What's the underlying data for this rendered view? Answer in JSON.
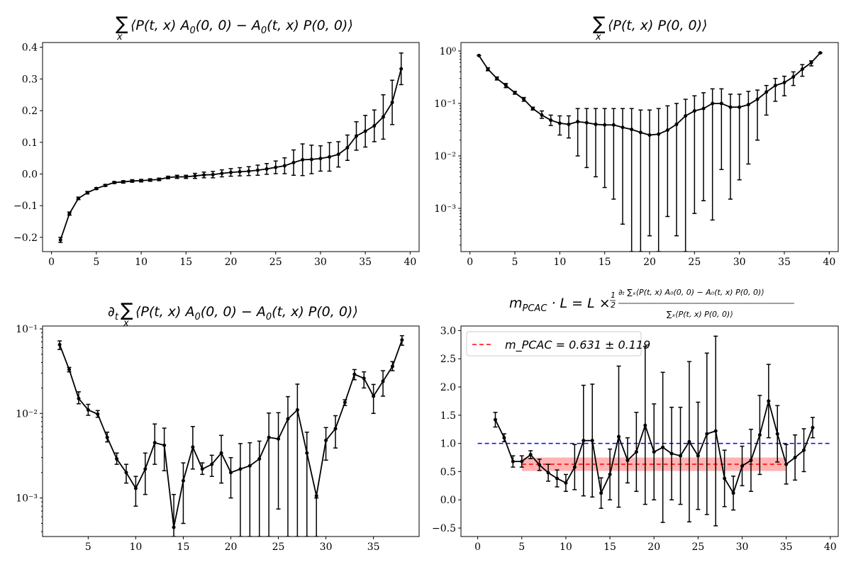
{
  "chart_data": [
    {
      "type": "line",
      "title": "∑ₓ⟨P(t, x) A₀(0, 0) − A₀(t, x) P(0, 0)⟩",
      "xlim": [
        -1,
        41
      ],
      "ylim": [
        -0.245,
        0.415
      ],
      "yscale": "linear",
      "xticks": [
        0,
        5,
        10,
        15,
        20,
        25,
        30,
        35,
        40
      ],
      "yticks": [
        -0.2,
        -0.1,
        0.0,
        0.1,
        0.2,
        0.3,
        0.4
      ],
      "ytick_labels": [
        "−0.2",
        "−0.1",
        "0.0",
        "0.1",
        "0.2",
        "0.3",
        "0.4"
      ],
      "series": [
        {
          "color": "#000000",
          "x": [
            1,
            2,
            3,
            4,
            5,
            6,
            7,
            8,
            9,
            10,
            11,
            12,
            13,
            14,
            15,
            16,
            17,
            18,
            19,
            20,
            21,
            22,
            23,
            24,
            25,
            26,
            27,
            28,
            29,
            30,
            31,
            32,
            33,
            34,
            35,
            36,
            37,
            38,
            39
          ],
          "y": [
            -0.208,
            -0.125,
            -0.077,
            -0.059,
            -0.046,
            -0.036,
            -0.027,
            -0.025,
            -0.022,
            -0.021,
            -0.019,
            -0.017,
            -0.011,
            -0.009,
            -0.009,
            -0.006,
            -0.003,
            -0.002,
            0.002,
            0.005,
            0.007,
            0.009,
            0.012,
            0.016,
            0.021,
            0.026,
            0.036,
            0.045,
            0.046,
            0.049,
            0.054,
            0.062,
            0.083,
            0.12,
            0.135,
            0.152,
            0.18,
            0.226,
            0.332
          ],
          "err": [
            0.008,
            0.005,
            0.004,
            0.004,
            0.003,
            0.003,
            0.003,
            0.004,
            0.004,
            0.004,
            0.004,
            0.004,
            0.004,
            0.005,
            0.005,
            0.008,
            0.009,
            0.01,
            0.011,
            0.012,
            0.013,
            0.014,
            0.016,
            0.017,
            0.02,
            0.025,
            0.04,
            0.05,
            0.045,
            0.04,
            0.045,
            0.04,
            0.04,
            0.045,
            0.05,
            0.05,
            0.07,
            0.07,
            0.05
          ]
        }
      ]
    },
    {
      "type": "line",
      "title": "∑ₓ⟨P(t, x) P(0, 0)⟩",
      "xlim": [
        -1,
        41
      ],
      "ylim": [
        0.00015,
        1.45
      ],
      "yscale": "log",
      "xticks": [
        0,
        5,
        10,
        15,
        20,
        25,
        30,
        35,
        40
      ],
      "yticks": [
        0.001,
        0.01,
        0.1,
        1
      ],
      "ytick_labels": [
        "10⁻³",
        "10⁻²",
        "10⁻¹",
        "10⁰"
      ],
      "series": [
        {
          "color": "#000000",
          "x": [
            1,
            2,
            3,
            4,
            5,
            6,
            7,
            8,
            9,
            10,
            11,
            12,
            13,
            14,
            15,
            16,
            17,
            18,
            19,
            20,
            21,
            22,
            23,
            24,
            25,
            26,
            27,
            28,
            29,
            30,
            31,
            32,
            33,
            34,
            35,
            36,
            37,
            38,
            39
          ],
          "y": [
            0.82,
            0.45,
            0.3,
            0.22,
            0.16,
            0.12,
            0.08,
            0.06,
            0.048,
            0.042,
            0.04,
            0.045,
            0.043,
            0.04,
            0.039,
            0.039,
            0.035,
            0.032,
            0.028,
            0.025,
            0.026,
            0.031,
            0.04,
            0.058,
            0.072,
            0.08,
            0.1,
            0.1,
            0.085,
            0.085,
            0.095,
            0.12,
            0.165,
            0.22,
            0.25,
            0.32,
            0.45,
            0.6,
            0.92
          ],
          "ylo": [
            0.82,
            0.42,
            0.28,
            0.2,
            0.15,
            0.11,
            0.075,
            0.052,
            0.038,
            0.025,
            0.022,
            0.01,
            0.006,
            0.004,
            0.0025,
            0.0015,
            0.0005,
            1e-05,
            1e-05,
            0.0003,
            1e-05,
            0.0007,
            0.0003,
            1e-05,
            0.0008,
            0.0014,
            0.0006,
            0.0055,
            0.0015,
            0.0035,
            0.007,
            0.02,
            0.06,
            0.11,
            0.14,
            0.22,
            0.33,
            0.52,
            0.92
          ],
          "yhi": [
            0.82,
            0.48,
            0.32,
            0.24,
            0.17,
            0.13,
            0.085,
            0.072,
            0.06,
            0.058,
            0.058,
            0.08,
            0.08,
            0.08,
            0.08,
            0.08,
            0.08,
            0.08,
            0.075,
            0.075,
            0.08,
            0.09,
            0.1,
            0.12,
            0.14,
            0.16,
            0.19,
            0.19,
            0.15,
            0.15,
            0.17,
            0.18,
            0.22,
            0.3,
            0.33,
            0.4,
            0.55,
            0.65,
            0.92
          ]
        }
      ]
    },
    {
      "type": "line",
      "title": "∂ₜ∑ₓ⟨P(t, x) A₀(0, 0) − A₀(t, x) P(0, 0)⟩",
      "xlim": [
        0.2,
        39.8
      ],
      "ylim": [
        0.00035,
        0.108
      ],
      "yscale": "log",
      "xticks": [
        5,
        10,
        15,
        20,
        25,
        30,
        35
      ],
      "yticks": [
        0.001,
        0.01,
        0.1
      ],
      "ytick_labels": [
        "10⁻³",
        "10⁻²",
        "10⁻¹"
      ],
      "series": [
        {
          "color": "#000000",
          "x": [
            2,
            3,
            4,
            5,
            6,
            7,
            8,
            9,
            10,
            11,
            12,
            13,
            14,
            15,
            16,
            17,
            18,
            19,
            20,
            21,
            22,
            23,
            24,
            25,
            26,
            27,
            28,
            29,
            30,
            31,
            32,
            33,
            34,
            35,
            36,
            37,
            38
          ],
          "y": [
            0.065,
            0.033,
            0.015,
            0.011,
            0.0098,
            0.0052,
            0.0029,
            0.002,
            0.0013,
            0.0022,
            0.0045,
            0.0042,
            0.00045,
            0.0016,
            0.004,
            0.0022,
            0.0025,
            0.0034,
            0.002,
            0.0022,
            0.0024,
            0.0029,
            0.0052,
            0.005,
            0.0086,
            0.011,
            0.0034,
            0.00106,
            0.0048,
            0.0066,
            0.0135,
            0.029,
            0.026,
            0.016,
            0.024,
            0.036,
            0.074
          ],
          "ylo": [
            0.057,
            0.031,
            0.013,
            0.0095,
            0.009,
            0.0046,
            0.0025,
            0.0015,
            0.0008,
            0.0011,
            0.0025,
            0.0021,
            0.00025,
            0.0005,
            0.0022,
            0.0019,
            0.0018,
            0.0015,
            0.001,
            1e-05,
            1e-05,
            1e-05,
            1e-05,
            0.00074,
            1e-05,
            1e-05,
            1e-05,
            1e-05,
            0.0028,
            0.0039,
            0.0124,
            0.025,
            0.02,
            0.01,
            0.016,
            0.032,
            0.064
          ],
          "yhi": [
            0.072,
            0.035,
            0.018,
            0.0128,
            0.0108,
            0.006,
            0.0034,
            0.0025,
            0.0018,
            0.0034,
            0.0075,
            0.0067,
            0.0011,
            0.0026,
            0.007,
            0.0026,
            0.0032,
            0.0055,
            0.003,
            0.0044,
            0.0045,
            0.0047,
            0.0101,
            0.0102,
            0.0158,
            0.0222,
            0.006,
            0.001,
            0.0068,
            0.0094,
            0.0145,
            0.033,
            0.031,
            0.022,
            0.032,
            0.041,
            0.083
          ]
        }
      ]
    },
    {
      "type": "line",
      "title": "m_PCAC · L = L × ½ ∂ₜ∑ₓ⟨P(t, x) A₀(0, 0) − A₀(t, x) P(0, 0)⟩ / ∑ₓ⟨P(t, x) P(0, 0)⟩",
      "xlim": [
        -1.9,
        40.9
      ],
      "ylim": [
        -0.65,
        3.08
      ],
      "yscale": "linear",
      "xticks": [
        0,
        5,
        10,
        15,
        20,
        25,
        30,
        35,
        40
      ],
      "yticks": [
        -0.5,
        0.0,
        0.5,
        1.0,
        1.5,
        2.0,
        2.5,
        3.0
      ],
      "ytick_labels": [
        "−0.5",
        "0.0",
        "0.5",
        "1.0",
        "1.5",
        "2.0",
        "2.5",
        "3.0"
      ],
      "legend": {
        "label": "m_PCAC = 0.631 ± 0.119",
        "position": "top-left"
      },
      "series": [
        {
          "color": "#000000",
          "x": [
            2,
            3,
            4,
            5,
            6,
            7,
            8,
            9,
            10,
            11,
            12,
            13,
            14,
            15,
            16,
            17,
            18,
            19,
            20,
            21,
            22,
            23,
            24,
            25,
            26,
            27,
            28,
            29,
            30,
            31,
            32,
            33,
            34,
            35,
            36,
            37,
            38
          ],
          "y": [
            1.42,
            1.1,
            0.68,
            0.68,
            0.8,
            0.62,
            0.48,
            0.38,
            0.3,
            0.58,
            1.05,
            1.05,
            0.12,
            0.45,
            1.12,
            0.7,
            0.85,
            1.32,
            0.85,
            0.93,
            0.82,
            0.78,
            1.03,
            0.78,
            1.17,
            1.22,
            0.38,
            0.12,
            0.6,
            0.7,
            1.15,
            1.75,
            1.17,
            0.63,
            0.75,
            0.88,
            1.28
          ],
          "err": [
            0.13,
            0.07,
            0.1,
            0.1,
            0.07,
            0.1,
            0.15,
            0.15,
            0.15,
            0.4,
            0.98,
            1.0,
            0.27,
            0.45,
            1.25,
            0.4,
            0.7,
            1.4,
            0.85,
            1.33,
            0.82,
            0.86,
            1.42,
            0.95,
            1.43,
            1.68,
            0.5,
            0.3,
            0.35,
            0.55,
            0.7,
            0.65,
            0.5,
            0.35,
            0.4,
            0.38,
            0.18
          ]
        }
      ],
      "reference_line": {
        "y": 1.0,
        "x": [
          0,
          40
        ],
        "color": "#0000ff",
        "style": "dashed"
      },
      "fit": {
        "value": 0.631,
        "uncertainty": 0.119,
        "x_range": [
          5,
          35
        ],
        "color": "#ff0000",
        "band_color": "#ff8080",
        "style": "dashed"
      }
    }
  ]
}
